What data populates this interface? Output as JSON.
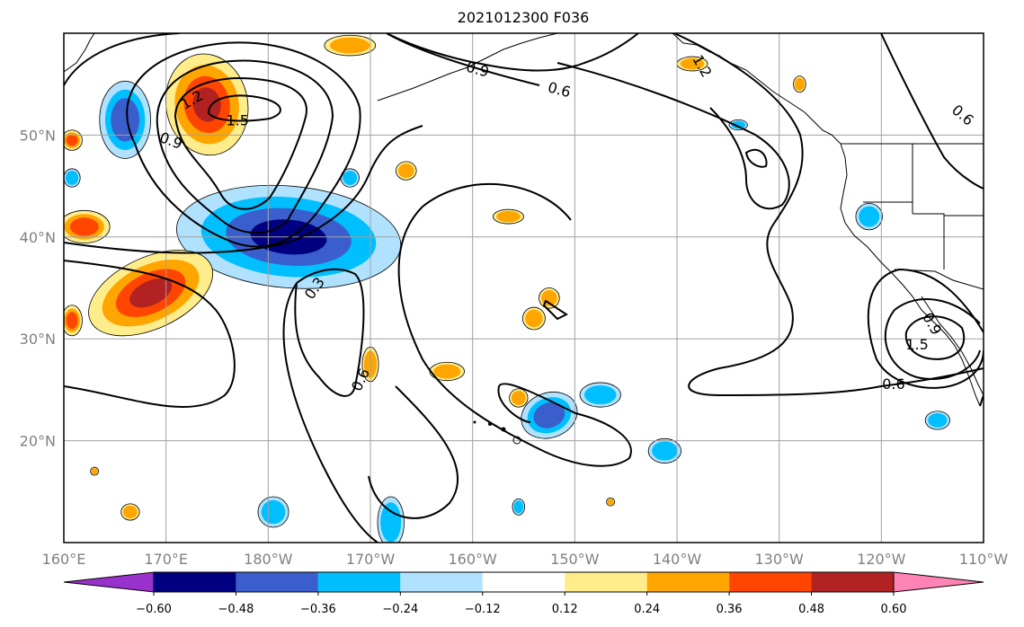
{
  "title": "2021012300 F036",
  "map": {
    "lon_range": [
      160,
      250
    ],
    "lat_range": [
      10,
      60
    ],
    "lon_ticks": [
      {
        "lon": 160,
        "label": "160°E"
      },
      {
        "lon": 170,
        "label": "170°E"
      },
      {
        "lon": 180,
        "label": "180°W"
      },
      {
        "lon": 190,
        "label": "170°W"
      },
      {
        "lon": 200,
        "label": "160°W"
      },
      {
        "lon": 210,
        "label": "150°W"
      },
      {
        "lon": 220,
        "label": "140°W"
      },
      {
        "lon": 230,
        "label": "130°W"
      },
      {
        "lon": 240,
        "label": "120°W"
      },
      {
        "lon": 250,
        "label": "110°W"
      }
    ],
    "lat_ticks": [
      {
        "lat": 20,
        "label": "20°N"
      },
      {
        "lat": 30,
        "label": "30°N"
      },
      {
        "lat": 40,
        "label": "40°N"
      },
      {
        "lat": 50,
        "label": "50°N"
      }
    ],
    "grid": true
  },
  "contour_labels": [
    {
      "text": "1.5",
      "lon": 177.0,
      "lat": 51.5,
      "angle": 0
    },
    {
      "text": "1.2",
      "lon": 172.5,
      "lat": 53.5,
      "angle": -30
    },
    {
      "text": "0.9",
      "lon": 170.5,
      "lat": 49.5,
      "angle": 20
    },
    {
      "text": "0.9",
      "lon": 200.5,
      "lat": 56.5,
      "angle": 15
    },
    {
      "text": "0.6",
      "lon": 208.5,
      "lat": 54.5,
      "angle": 15
    },
    {
      "text": "1.2",
      "lon": 222.5,
      "lat": 56.8,
      "angle": 60
    },
    {
      "text": "0.6",
      "lon": 248.0,
      "lat": 52.0,
      "angle": 40
    },
    {
      "text": "0.3",
      "lon": 184.5,
      "lat": 35.0,
      "angle": -55
    },
    {
      "text": "0.6",
      "lon": 189.0,
      "lat": 26.0,
      "angle": -65
    },
    {
      "text": "0.6",
      "lon": 241.2,
      "lat": 25.6,
      "angle": 0
    },
    {
      "text": "1.5",
      "lon": 243.5,
      "lat": 29.5,
      "angle": 0
    },
    {
      "text": "0.9",
      "lon": 245.0,
      "lat": 31.5,
      "angle": 60
    }
  ],
  "colorbar": {
    "colors": [
      "#9932cc",
      "#000080",
      "#3a5fcd",
      "#00bfff",
      "#b0e2ff",
      "#ffffff",
      "#ffec8b",
      "#ffa500",
      "#ff4500",
      "#b22222",
      "#ff83b4"
    ],
    "tick_labels": [
      "-0.60",
      "-0.48",
      "-0.36",
      "-0.24",
      "-0.12",
      "0.12",
      "0.24",
      "0.36",
      "0.48",
      "0.60"
    ]
  },
  "shaded_fields": [
    {
      "polarity": "neg",
      "level": 3,
      "lon": 182.0,
      "lat": 40.0,
      "rx": 11.0,
      "ry": 5.0,
      "rot": 5
    },
    {
      "polarity": "neg",
      "level": 2,
      "lon": 166.0,
      "lat": 51.5,
      "rx": 2.5,
      "ry": 3.8,
      "rot": 0
    },
    {
      "polarity": "neg",
      "level": 2,
      "lon": 207.5,
      "lat": 22.5,
      "rx": 2.8,
      "ry": 2.2,
      "rot": -20
    },
    {
      "polarity": "neg",
      "level": 1,
      "lon": 212.5,
      "lat": 24.5,
      "rx": 2.0,
      "ry": 1.2,
      "rot": 0
    },
    {
      "polarity": "neg",
      "level": 1,
      "lon": 238.8,
      "lat": 42.0,
      "rx": 1.3,
      "ry": 1.3,
      "rot": 0
    },
    {
      "polarity": "neg",
      "level": 1,
      "lon": 192.0,
      "lat": 12.0,
      "rx": 1.3,
      "ry": 2.5,
      "rot": 0
    },
    {
      "polarity": "neg",
      "level": 1,
      "lon": 180.5,
      "lat": 13.0,
      "rx": 1.5,
      "ry": 1.5,
      "rot": 0
    },
    {
      "polarity": "neg",
      "level": 1,
      "lon": 218.8,
      "lat": 19.0,
      "rx": 1.6,
      "ry": 1.2,
      "rot": 0
    },
    {
      "polarity": "neg",
      "level": 1,
      "lon": 245.5,
      "lat": 22.0,
      "rx": 1.2,
      "ry": 0.9,
      "rot": 0
    },
    {
      "polarity": "neg",
      "level": 1,
      "lon": 188.0,
      "lat": 45.8,
      "rx": 0.9,
      "ry": 0.9,
      "rot": 0
    },
    {
      "polarity": "neg",
      "level": 1,
      "lon": 160.8,
      "lat": 45.8,
      "rx": 0.8,
      "ry": 0.9,
      "rot": 0
    },
    {
      "polarity": "neg",
      "level": 1,
      "lon": 226.0,
      "lat": 51.0,
      "rx": 0.9,
      "ry": 0.5,
      "rot": 0
    },
    {
      "polarity": "neg",
      "level": 1,
      "lon": 204.5,
      "lat": 13.5,
      "rx": 0.6,
      "ry": 0.8,
      "rot": 0
    },
    {
      "polarity": "pos",
      "level": 3,
      "lon": 174.0,
      "lat": 53.0,
      "rx": 4.0,
      "ry": 5.0,
      "rot": -10
    },
    {
      "polarity": "pos",
      "level": 3,
      "lon": 168.5,
      "lat": 34.5,
      "rx": 6.5,
      "ry": 3.5,
      "rot": -25
    },
    {
      "polarity": "pos",
      "level": 2,
      "lon": 162.0,
      "lat": 41.0,
      "rx": 2.5,
      "ry": 1.6,
      "rot": 0
    },
    {
      "polarity": "pos",
      "level": 2,
      "lon": 160.8,
      "lat": 31.8,
      "rx": 1.0,
      "ry": 1.5,
      "rot": 0
    },
    {
      "polarity": "pos",
      "level": 2,
      "lon": 160.8,
      "lat": 49.5,
      "rx": 1.0,
      "ry": 1.0,
      "rot": 0
    },
    {
      "polarity": "pos",
      "level": 1,
      "lon": 188.0,
      "lat": 58.8,
      "rx": 2.5,
      "ry": 1.0,
      "rot": 0
    },
    {
      "polarity": "pos",
      "level": 1,
      "lon": 221.5,
      "lat": 57.0,
      "rx": 1.5,
      "ry": 0.7,
      "rot": 0
    },
    {
      "polarity": "pos",
      "level": 1,
      "lon": 232.0,
      "lat": 55.0,
      "rx": 0.6,
      "ry": 0.8,
      "rot": 0
    },
    {
      "polarity": "pos",
      "level": 1,
      "lon": 193.5,
      "lat": 46.5,
      "rx": 1.0,
      "ry": 0.9,
      "rot": 0
    },
    {
      "polarity": "pos",
      "level": 1,
      "lon": 203.5,
      "lat": 42.0,
      "rx": 1.5,
      "ry": 0.7,
      "rot": 0
    },
    {
      "polarity": "pos",
      "level": 1,
      "lon": 207.5,
      "lat": 34.0,
      "rx": 1.0,
      "ry": 1.0,
      "rot": 0
    },
    {
      "polarity": "pos",
      "level": 1,
      "lon": 206.0,
      "lat": 32.0,
      "rx": 1.1,
      "ry": 1.1,
      "rot": 0
    },
    {
      "polarity": "pos",
      "level": 1,
      "lon": 190.0,
      "lat": 27.5,
      "rx": 0.8,
      "ry": 1.7,
      "rot": 0
    },
    {
      "polarity": "pos",
      "level": 1,
      "lon": 197.5,
      "lat": 26.8,
      "rx": 1.7,
      "ry": 0.9,
      "rot": 0
    },
    {
      "polarity": "pos",
      "level": 1,
      "lon": 204.5,
      "lat": 24.2,
      "rx": 0.9,
      "ry": 0.9,
      "rot": 0
    },
    {
      "polarity": "pos",
      "level": 1,
      "lon": 166.5,
      "lat": 13.0,
      "rx": 0.9,
      "ry": 0.8,
      "rot": 0
    },
    {
      "polarity": "pos",
      "level": 1,
      "lon": 163.0,
      "lat": 17.0,
      "rx": 0.4,
      "ry": 0.4,
      "rot": 0
    },
    {
      "polarity": "pos",
      "level": 1,
      "lon": 213.5,
      "lat": 14.0,
      "rx": 0.4,
      "ry": 0.4,
      "rot": 0
    }
  ]
}
